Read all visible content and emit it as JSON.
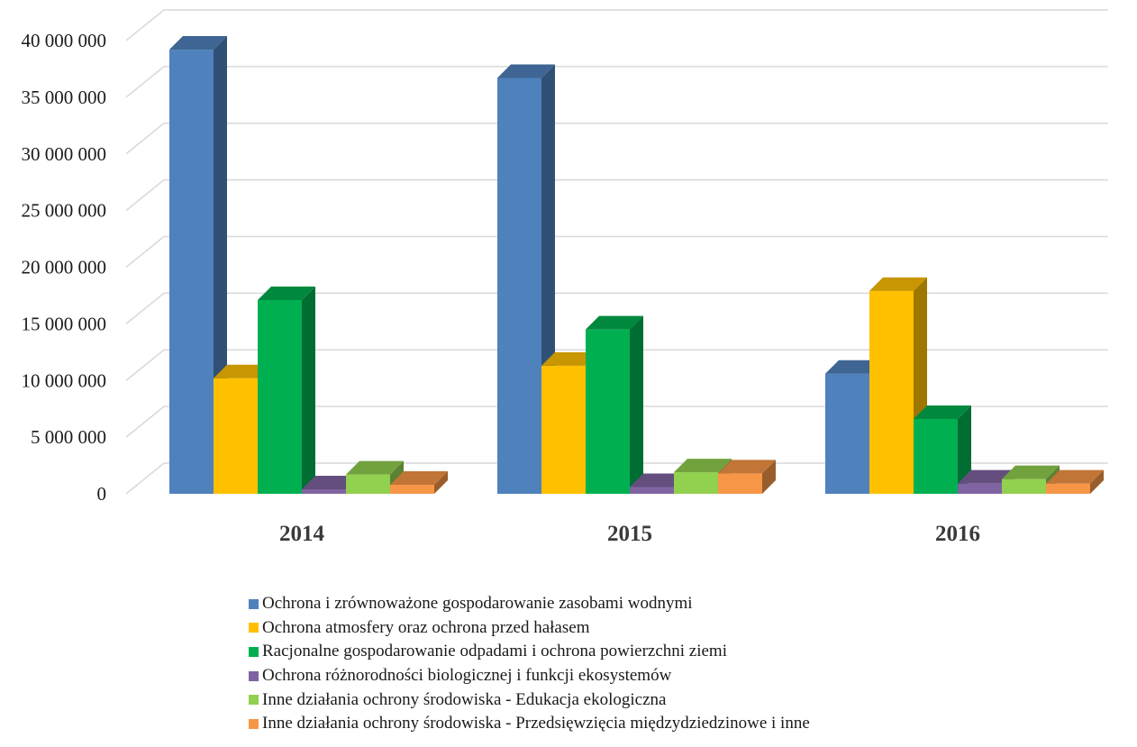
{
  "chart_data": {
    "type": "bar",
    "bar_style": "3d-clustered-column",
    "categories": [
      "2014",
      "2015",
      "2016"
    ],
    "y_ticks": [
      "0",
      "5 000 000",
      "10 000 000",
      "15 000 000",
      "20 000 000",
      "25 000 000",
      "30 000 000",
      "35 000 000",
      "40 000 000"
    ],
    "ylim": [
      0,
      40000000
    ],
    "y_step": 5000000,
    "grid": true,
    "legend_position": "bottom",
    "series": [
      {
        "name": "Ochrona i zrównoważone gospodarowanie zasobami wodnymi",
        "color": "#4F81BD",
        "values": [
          39200000,
          36700000,
          10600000
        ]
      },
      {
        "name": "Ochrona atmosfery oraz ochrona przed  hałasem",
        "color": "#FFC000",
        "values": [
          10200000,
          11300000,
          17900000
        ]
      },
      {
        "name": "Racjonalne gospodarowanie odpadami i ochrona powierzchni ziemi",
        "color": "#00B050",
        "values": [
          17100000,
          14500000,
          6600000
        ]
      },
      {
        "name": "Ochrona różnorodności biologicznej i funkcji ekosystemów",
        "color": "#8064A2",
        "values": [
          400000,
          600000,
          900000
        ]
      },
      {
        "name": "Inne działania ochrony środowiska - Edukacja ekologiczna",
        "color": "#92D050",
        "values": [
          1700000,
          1900000,
          1300000
        ]
      },
      {
        "name": "Inne działania ochrony środowiska - Przedsięwzięcia międzydziedzinowe i inne",
        "color": "#F79646",
        "values": [
          800000,
          1800000,
          900000
        ]
      }
    ]
  }
}
